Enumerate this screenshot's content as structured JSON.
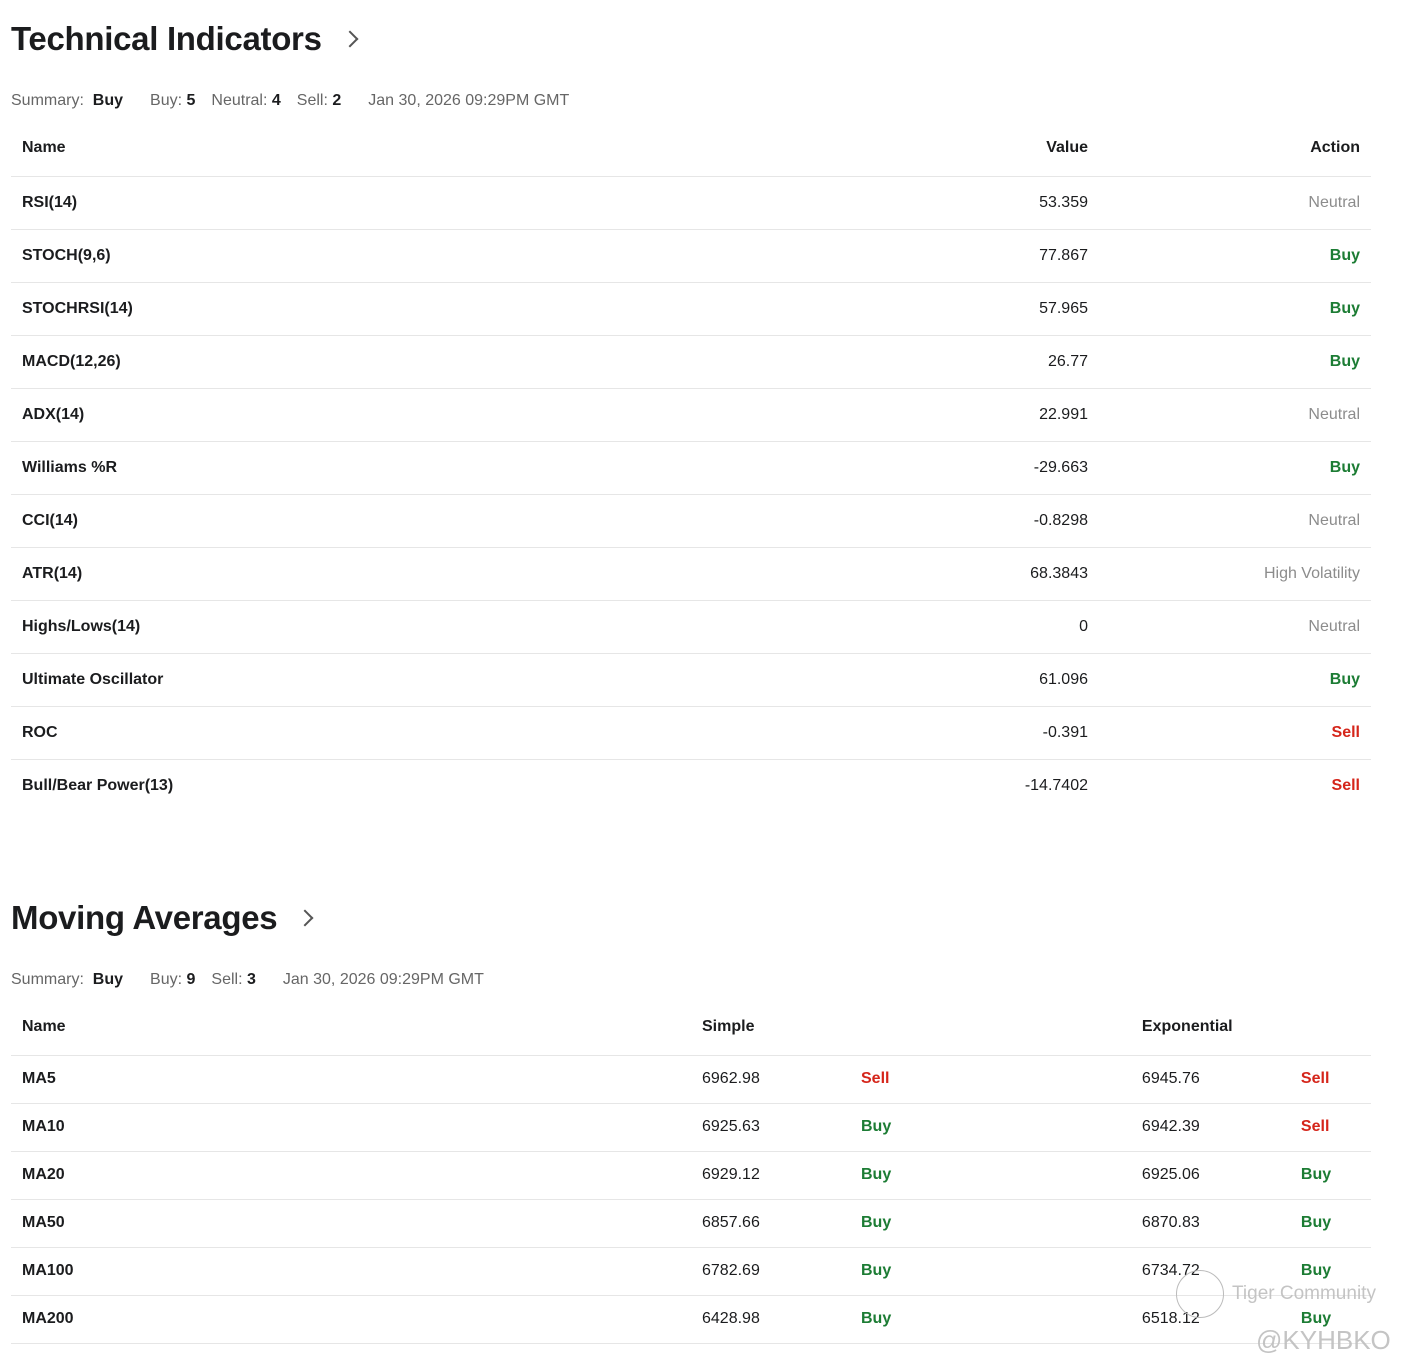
{
  "technical": {
    "title": "Technical Indicators",
    "summary_label": "Summary:",
    "summary_value": "Buy",
    "buy_label": "Buy:",
    "buy_count": "5",
    "neutral_label": "Neutral:",
    "neutral_count": "4",
    "sell_label": "Sell:",
    "sell_count": "2",
    "timestamp": "Jan 30, 2026 09:29PM GMT",
    "columns": [
      "Name",
      "Value",
      "Action"
    ],
    "rows": [
      {
        "name": "RSI(14)",
        "value": "53.359",
        "action": "Neutral",
        "cls": "neutral"
      },
      {
        "name": "STOCH(9,6)",
        "value": "77.867",
        "action": "Buy",
        "cls": "buy"
      },
      {
        "name": "STOCHRSI(14)",
        "value": "57.965",
        "action": "Buy",
        "cls": "buy"
      },
      {
        "name": "MACD(12,26)",
        "value": "26.77",
        "action": "Buy",
        "cls": "buy"
      },
      {
        "name": "ADX(14)",
        "value": "22.991",
        "action": "Neutral",
        "cls": "neutral"
      },
      {
        "name": "Williams %R",
        "value": "-29.663",
        "action": "Buy",
        "cls": "buy"
      },
      {
        "name": "CCI(14)",
        "value": "-0.8298",
        "action": "Neutral",
        "cls": "neutral"
      },
      {
        "name": "ATR(14)",
        "value": "68.3843",
        "action": "High Volatility",
        "cls": "hv"
      },
      {
        "name": "Highs/Lows(14)",
        "value": "0",
        "action": "Neutral",
        "cls": "neutral"
      },
      {
        "name": "Ultimate Oscillator",
        "value": "61.096",
        "action": "Buy",
        "cls": "buy"
      },
      {
        "name": "ROC",
        "value": "-0.391",
        "action": "Sell",
        "cls": "sell"
      },
      {
        "name": "Bull/Bear Power(13)",
        "value": "-14.7402",
        "action": "Sell",
        "cls": "sell"
      }
    ]
  },
  "moving": {
    "title": "Moving Averages",
    "summary_label": "Summary:",
    "summary_value": "Buy",
    "buy_label": "Buy:",
    "buy_count": "9",
    "sell_label": "Sell:",
    "sell_count": "3",
    "timestamp": "Jan 30, 2026 09:29PM GMT",
    "columns": [
      "Name",
      "Simple",
      "Exponential"
    ],
    "rows": [
      {
        "name": "MA5",
        "simple": "6962.98",
        "simple_action": "Sell",
        "exp": "6945.76",
        "exp_action": "Sell"
      },
      {
        "name": "MA10",
        "simple": "6925.63",
        "simple_action": "Buy",
        "exp": "6942.39",
        "exp_action": "Sell"
      },
      {
        "name": "MA20",
        "simple": "6929.12",
        "simple_action": "Buy",
        "exp": "6925.06",
        "exp_action": "Buy"
      },
      {
        "name": "MA50",
        "simple": "6857.66",
        "simple_action": "Buy",
        "exp": "6870.83",
        "exp_action": "Buy"
      },
      {
        "name": "MA100",
        "simple": "6782.69",
        "simple_action": "Buy",
        "exp": "6734.72",
        "exp_action": "Buy"
      },
      {
        "name": "MA200",
        "simple": "6428.98",
        "simple_action": "Buy",
        "exp": "6518.12",
        "exp_action": "Buy"
      }
    ]
  },
  "watermark": {
    "line1": "Tiger Community",
    "line2": "@KYHBKO"
  },
  "colors": {
    "buy": "#1c7c34",
    "sell": "#d5251a",
    "neutral": "#8c8c8c"
  }
}
